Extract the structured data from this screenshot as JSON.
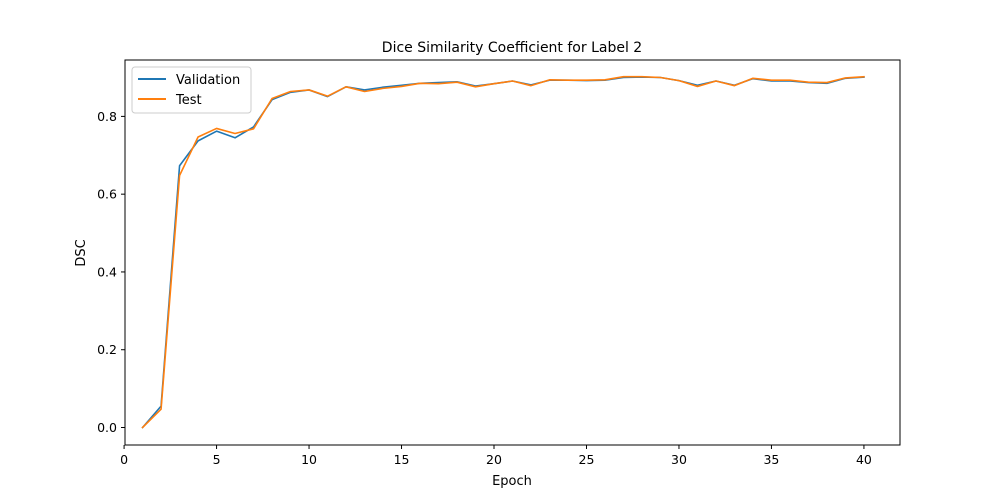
{
  "chart_data": {
    "type": "line",
    "title": "Dice Similarity Coefficient for Label 2",
    "xlabel": "Epoch",
    "ylabel": "DSC",
    "xlim": [
      0.05,
      41.95
    ],
    "ylim": [
      -0.045,
      0.945
    ],
    "xticks": [
      0,
      5,
      10,
      15,
      20,
      25,
      30,
      35,
      40
    ],
    "yticks": [
      0.0,
      0.2,
      0.4,
      0.6,
      0.8
    ],
    "xtick_labels": [
      "0",
      "5",
      "10",
      "15",
      "20",
      "25",
      "30",
      "35",
      "40"
    ],
    "ytick_labels": [
      "0.0",
      "0.2",
      "0.4",
      "0.6",
      "0.8"
    ],
    "grid": false,
    "legend_position": "top-left",
    "x": [
      1,
      2,
      3,
      4,
      5,
      6,
      7,
      8,
      9,
      10,
      11,
      12,
      13,
      14,
      15,
      16,
      17,
      18,
      19,
      20,
      21,
      22,
      23,
      24,
      25,
      26,
      27,
      28,
      29,
      30,
      31,
      32,
      33,
      34,
      35,
      36,
      37,
      38,
      39,
      40
    ],
    "series": [
      {
        "name": "Validation",
        "color": "#1f77b4",
        "values": [
          0.0,
          0.055,
          0.673,
          0.737,
          0.762,
          0.745,
          0.773,
          0.843,
          0.862,
          0.868,
          0.851,
          0.876,
          0.868,
          0.875,
          0.88,
          0.885,
          0.887,
          0.889,
          0.878,
          0.884,
          0.891,
          0.881,
          0.893,
          0.893,
          0.892,
          0.893,
          0.9,
          0.901,
          0.9,
          0.892,
          0.88,
          0.891,
          0.88,
          0.897,
          0.891,
          0.891,
          0.887,
          0.885,
          0.898,
          0.901
        ]
      },
      {
        "name": "Test",
        "color": "#ff7f0e",
        "values": [
          0.0,
          0.047,
          0.648,
          0.747,
          0.769,
          0.756,
          0.768,
          0.846,
          0.864,
          0.868,
          0.852,
          0.876,
          0.864,
          0.872,
          0.877,
          0.885,
          0.884,
          0.888,
          0.876,
          0.884,
          0.891,
          0.879,
          0.894,
          0.893,
          0.893,
          0.894,
          0.902,
          0.902,
          0.9,
          0.892,
          0.877,
          0.891,
          0.879,
          0.898,
          0.893,
          0.893,
          0.888,
          0.887,
          0.899,
          0.902
        ]
      }
    ]
  }
}
